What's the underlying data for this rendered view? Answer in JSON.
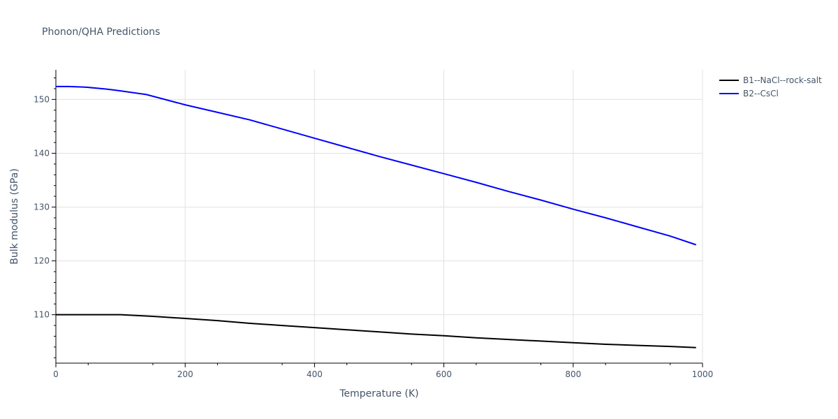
{
  "chart_data": {
    "type": "line",
    "title": "Phonon/QHA Predictions",
    "xlabel": "Temperature (K)",
    "ylabel": "Bulk modulus (GPa)",
    "xlim": [
      0,
      1000
    ],
    "ylim": [
      101,
      155.5
    ],
    "x_ticks": [
      0,
      200,
      400,
      600,
      800,
      1000
    ],
    "y_ticks": [
      110,
      120,
      130,
      140,
      150
    ],
    "grid": true,
    "legend_position": "top-right",
    "series": [
      {
        "name": "B1--NaCl--rock-salt",
        "color": "#000000",
        "x": [
          0,
          50,
          90,
          100,
          150,
          200,
          250,
          300,
          350,
          400,
          450,
          500,
          550,
          600,
          650,
          700,
          750,
          800,
          850,
          900,
          950,
          990
        ],
        "y": [
          110.0,
          110.0,
          110.0,
          110.0,
          109.7,
          109.3,
          108.9,
          108.4,
          108.0,
          107.6,
          107.2,
          106.8,
          106.4,
          106.1,
          105.7,
          105.4,
          105.1,
          104.8,
          104.5,
          104.3,
          104.1,
          103.9
        ]
      },
      {
        "name": "B2--CsCl",
        "color": "#0000ff",
        "x": [
          0,
          20,
          45,
          80,
          100,
          140,
          200,
          250,
          300,
          350,
          400,
          450,
          500,
          550,
          600,
          650,
          700,
          750,
          800,
          850,
          900,
          950,
          990
        ],
        "y": [
          152.4,
          152.4,
          152.3,
          151.9,
          151.6,
          150.9,
          149.0,
          147.6,
          146.2,
          144.5,
          142.8,
          141.1,
          139.4,
          137.8,
          136.2,
          134.6,
          132.9,
          131.3,
          129.6,
          128.0,
          126.3,
          124.6,
          123.0
        ]
      }
    ]
  }
}
